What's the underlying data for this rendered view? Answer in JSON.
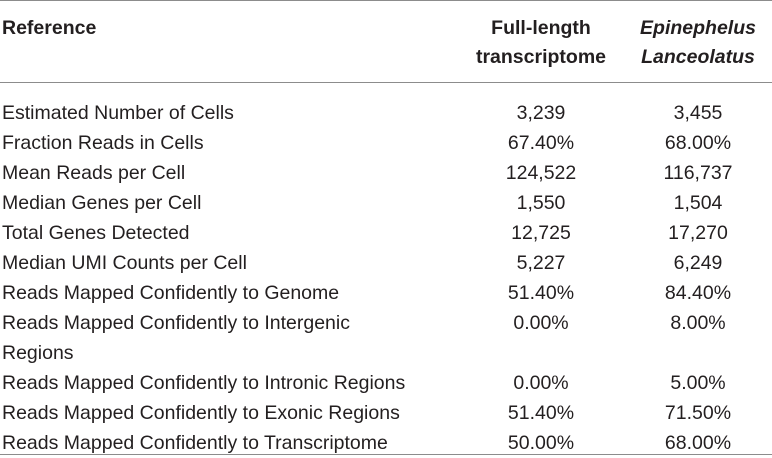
{
  "header": {
    "reference": "Reference",
    "col1_line1": "Full-length",
    "col1_line2": "transcriptome",
    "col2_line1": "Epinephelus",
    "col2_line2": "Lanceolatus"
  },
  "rows": [
    {
      "label": "Estimated Number of Cells",
      "v1": "3,239",
      "v2": "3,455"
    },
    {
      "label": "Fraction Reads in Cells",
      "v1": "67.40%",
      "v2": "68.00%"
    },
    {
      "label": "Mean Reads per Cell",
      "v1": "124,522",
      "v2": "116,737"
    },
    {
      "label": "Median Genes per Cell",
      "v1": "1,550",
      "v2": "1,504"
    },
    {
      "label": "Total Genes Detected",
      "v1": "12,725",
      "v2": "17,270"
    },
    {
      "label": "Median UMI Counts per Cell",
      "v1": "5,227",
      "v2": "6,249"
    },
    {
      "label": "Reads Mapped Confidently to Genome",
      "v1": "51.40%",
      "v2": "84.40%"
    },
    {
      "label_line1": "Reads Mapped Confidently to Intergenic",
      "label_line2": "Regions",
      "v1": "0.00%",
      "v2": "8.00%"
    },
    {
      "label": "Reads Mapped Confidently to Intronic Regions",
      "v1": "0.00%",
      "v2": "5.00%"
    },
    {
      "label": "Reads Mapped Confidently to Exonic Regions",
      "v1": "51.40%",
      "v2": "71.50%"
    },
    {
      "label": "Reads Mapped Confidently to Transcriptome",
      "v1": "50.00%",
      "v2": "68.00%"
    }
  ]
}
